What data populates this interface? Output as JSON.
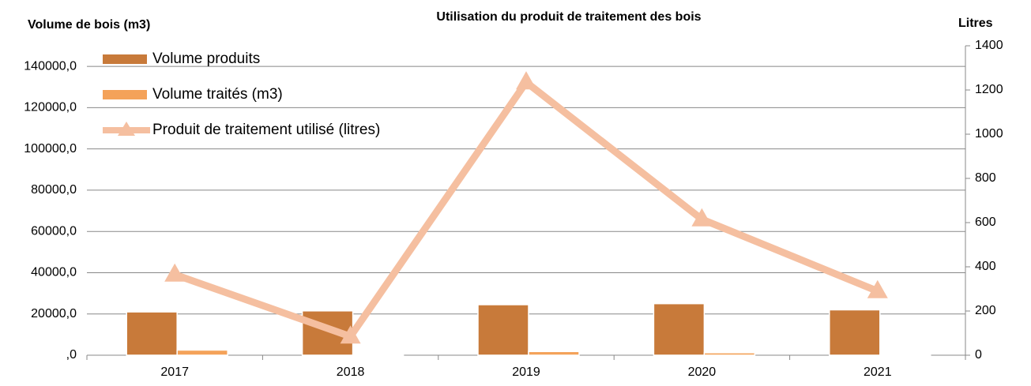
{
  "chart_data": {
    "type": "bar_line",
    "title": "Utilisation du produit de traitement des bois",
    "y_label": "Volume de bois (m3)",
    "y2_label": "Litres",
    "categories": [
      "2017",
      "2018",
      "2019",
      "2020",
      "2021"
    ],
    "series": [
      {
        "name": "Volume produits",
        "type": "bar",
        "color": "#c87a3a",
        "values": [
          21000,
          21500,
          24500,
          25000,
          22000
        ]
      },
      {
        "name": "Volume traités (m3)",
        "type": "bar",
        "color": "#f4a259",
        "values": [
          2500,
          300,
          1800,
          1200,
          300
        ]
      },
      {
        "name": "Produit de traitement utilisé (litres)",
        "type": "line",
        "axis": "y2",
        "color": "#f5bfa0",
        "values": [
          365,
          85,
          1235,
          615,
          290
        ]
      }
    ],
    "ylim": [
      0,
      150000
    ],
    "yticks": [
      {
        "value": 0,
        "label": ",0"
      },
      {
        "value": 20000,
        "label": "20000,0"
      },
      {
        "value": 40000,
        "label": "40000,0"
      },
      {
        "value": 60000,
        "label": "60000,0"
      },
      {
        "value": 80000,
        "label": "80000,0"
      },
      {
        "value": 100000,
        "label": "100000,0"
      },
      {
        "value": 120000,
        "label": "120000,0"
      },
      {
        "value": 140000,
        "label": "140000,0"
      }
    ],
    "y2lim": [
      0,
      1400
    ],
    "y2ticks": [
      0,
      200,
      400,
      600,
      800,
      1000,
      1200,
      1400
    ],
    "grid": true,
    "legend": "top-left"
  }
}
